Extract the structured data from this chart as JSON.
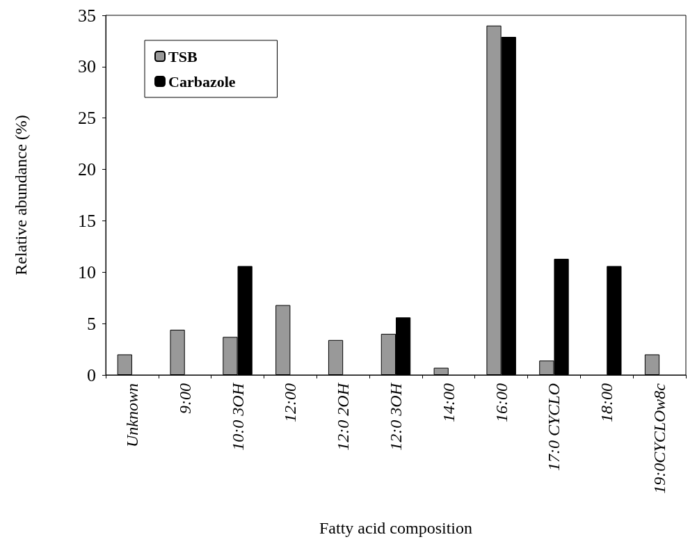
{
  "chart_data": {
    "type": "bar",
    "xlabel": "Fatty acid composition",
    "ylabel": "Relative abundance (%)",
    "categories": [
      "Unknown",
      "9:00",
      "10:0 3OH",
      "12:00",
      "12:0 2OH",
      "12:0 3OH",
      "14:00",
      "16:00",
      "17:0 CYCLO",
      "18:00",
      "19:0CYCLOw8c"
    ],
    "series": [
      {
        "name": "TSB",
        "color": "#999999",
        "values": [
          2.0,
          4.4,
          3.7,
          6.8,
          3.4,
          4.0,
          0.7,
          34.0,
          1.4,
          0,
          2.0
        ]
      },
      {
        "name": "Carbazole",
        "color": "#000000",
        "values": [
          0,
          0,
          10.6,
          0,
          0,
          5.6,
          0,
          32.9,
          11.3,
          10.6,
          0
        ]
      }
    ],
    "ylim": [
      0,
      35
    ],
    "yticks": [
      0,
      5,
      10,
      15,
      20,
      25,
      30,
      35
    ],
    "grid": false,
    "legend": "top left"
  }
}
